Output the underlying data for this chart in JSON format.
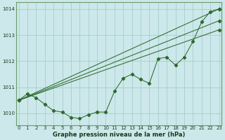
{
  "x": [
    0,
    1,
    2,
    3,
    4,
    5,
    6,
    7,
    8,
    9,
    10,
    11,
    12,
    13,
    14,
    15,
    16,
    17,
    18,
    19,
    20,
    21,
    22,
    23
  ],
  "line_main": [
    1010.5,
    1010.75,
    1010.6,
    1010.35,
    1010.1,
    1010.05,
    1009.85,
    1009.8,
    1009.95,
    1010.05,
    1010.05,
    1010.85,
    1011.35,
    1011.5,
    1011.3,
    1011.15,
    1012.1,
    1012.15,
    1011.85,
    1012.15,
    1012.75,
    1013.5,
    1013.9,
    1014.0
  ],
  "trend1_x": [
    0,
    23
  ],
  "trend1_y": [
    1010.5,
    1014.0
  ],
  "trend2_x": [
    0,
    23
  ],
  "trend2_y": [
    1010.5,
    1013.55
  ],
  "trend3_x": [
    0,
    23
  ],
  "trend3_y": [
    1010.5,
    1013.2
  ],
  "line_color": "#2d6a2d",
  "bg_color": "#cce8ea",
  "grid_color": "#9fc8ca",
  "ylabel_ticks": [
    1010,
    1011,
    1012,
    1013,
    1014
  ],
  "xlabel": "Graphe pression niveau de la mer (hPa)",
  "ylim": [
    1009.55,
    1014.25
  ],
  "xlim": [
    -0.3,
    23.3
  ],
  "tick_fontsize": 5.0,
  "xlabel_fontsize": 6.0
}
